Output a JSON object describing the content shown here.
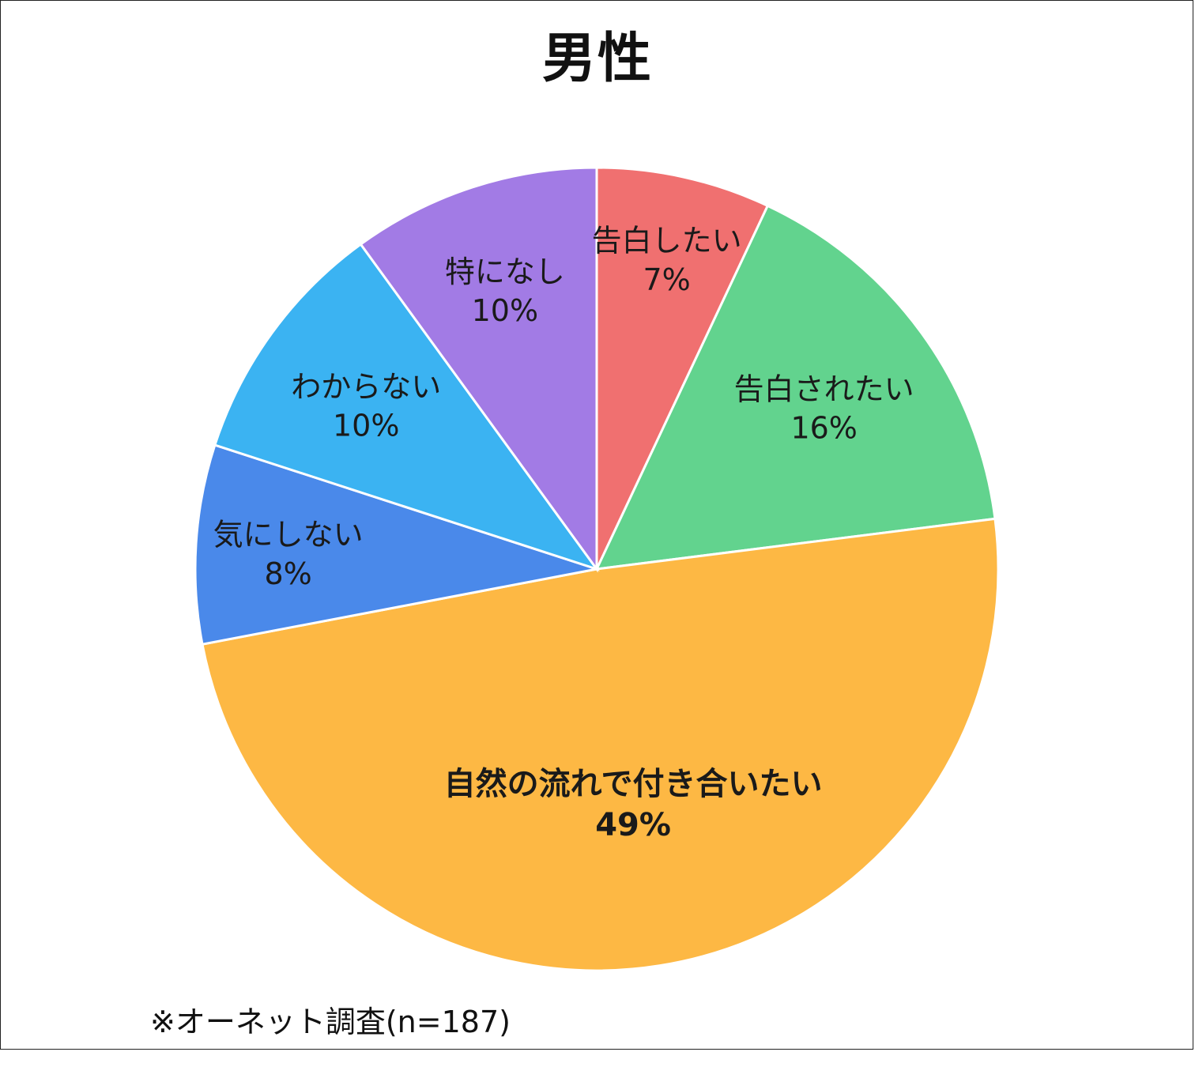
{
  "chart_data": {
    "type": "pie",
    "title": "男性",
    "start_angle_deg": 0,
    "direction": "clockwise",
    "slices": [
      {
        "label": "告白したい",
        "value": 7,
        "value_label": "7%",
        "color": "#F07070"
      },
      {
        "label": "告白されたい",
        "value": 16,
        "value_label": "16%",
        "color": "#62D38E"
      },
      {
        "label": "自然の流れで付き合いたい",
        "value": 49,
        "value_label": "49%",
        "color": "#FDB844",
        "emphasis": true
      },
      {
        "label": "気にしない",
        "value": 8,
        "value_label": "8%",
        "color": "#4A89EA"
      },
      {
        "label": "わからない",
        "value": 10,
        "value_label": "10%",
        "color": "#3BB3F2"
      },
      {
        "label": "特になし",
        "value": 10,
        "value_label": "10%",
        "color": "#A27BE5"
      }
    ]
  },
  "footnote": "※オーネット調査(n=187)"
}
